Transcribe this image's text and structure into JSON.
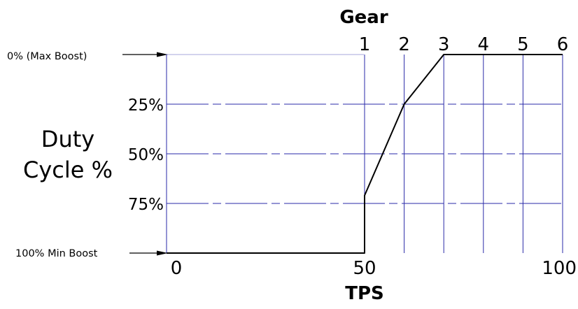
{
  "chart_data": {
    "type": "line",
    "title": "Gear",
    "xlabel": "TPS",
    "ylabel_line1": "Duty",
    "ylabel_line2": "Cycle %",
    "x_ticks": [
      "0",
      "50",
      "100"
    ],
    "x_tick_values": [
      0,
      50,
      100
    ],
    "y_tick_labels": [
      "25%",
      "50%",
      "75%"
    ],
    "y_tick_values": [
      25,
      50,
      75
    ],
    "y_top_label": "0% (Max Boost)",
    "y_bottom_label": "100% Min Boost",
    "xlim": [
      0,
      100
    ],
    "ylim": [
      0,
      100
    ],
    "y_reversed": true,
    "gears": [
      {
        "label": "1",
        "x": 50
      },
      {
        "label": "2",
        "x": 60
      },
      {
        "label": "3",
        "x": 70
      },
      {
        "label": "4",
        "x": 80
      },
      {
        "label": "5",
        "x": 90
      },
      {
        "label": "6",
        "x": 100
      }
    ],
    "series": [
      {
        "x": [
          0,
          50,
          50,
          60,
          70,
          100
        ],
        "y": [
          100,
          100,
          71,
          25,
          0,
          0
        ]
      }
    ],
    "grid_color": "#2a2aa8",
    "line_color": "#000000"
  }
}
